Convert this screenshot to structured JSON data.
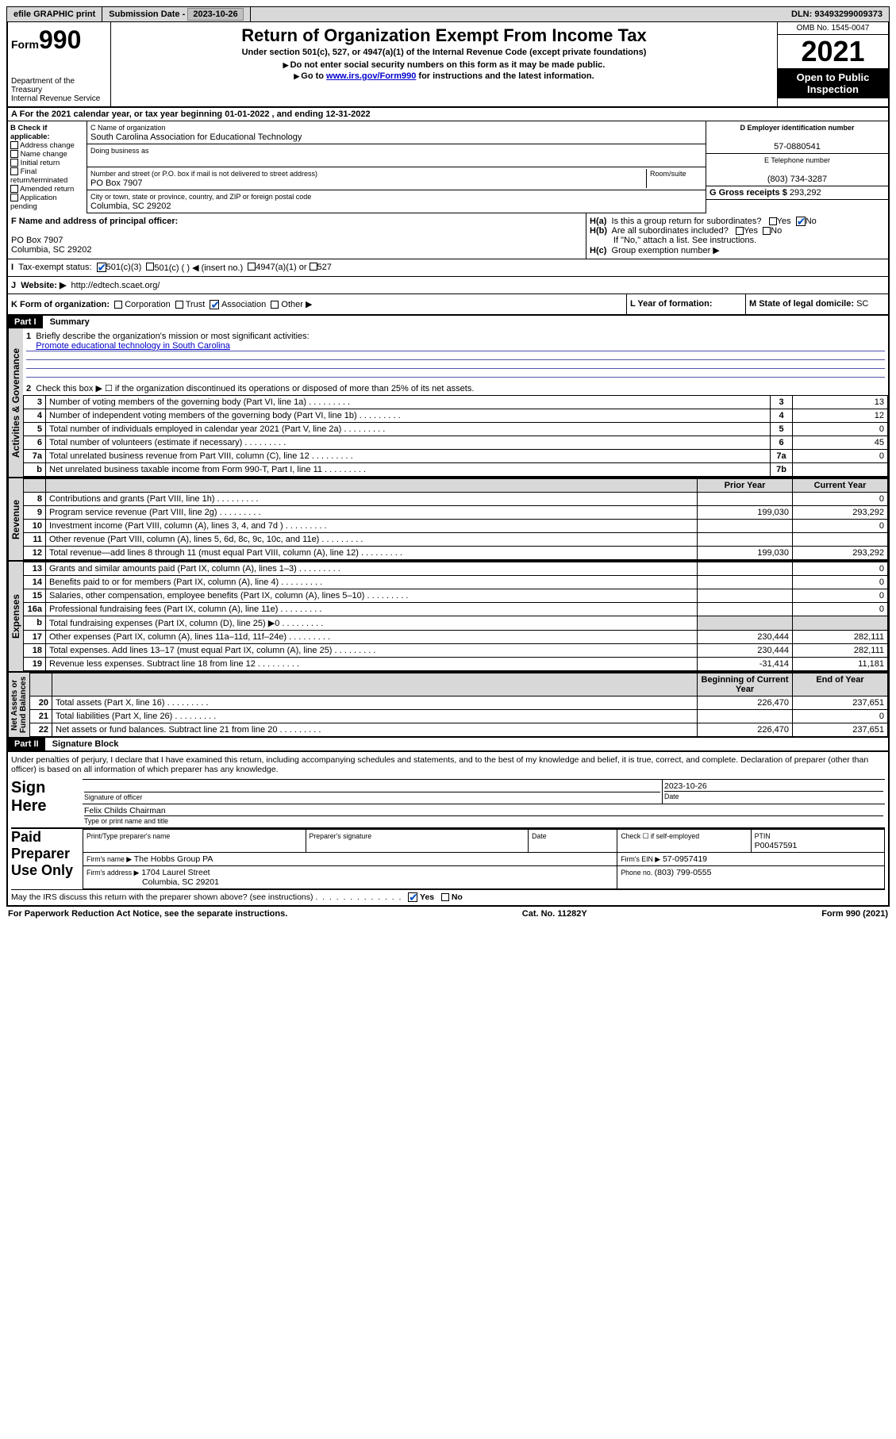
{
  "topbar": {
    "efile": "efile GRAPHIC print",
    "submission_label": "Submission Date - ",
    "submission_date": "2023-10-26",
    "dln_label": "DLN: ",
    "dln": "93493299009373"
  },
  "header": {
    "form_small": "Form",
    "form_big": "990",
    "dept1": "Department of the Treasury",
    "dept2": "Internal Revenue Service",
    "title": "Return of Organization Exempt From Income Tax",
    "subtitle": "Under section 501(c), 527, or 4947(a)(1) of the Internal Revenue Code (except private foundations)",
    "note1": "Do not enter social security numbers on this form as it may be made public.",
    "note2_pre": "Go to ",
    "note2_link": "www.irs.gov/Form990",
    "note2_post": " for instructions and the latest information.",
    "omb": "OMB No. 1545-0047",
    "year": "2021",
    "open_pub1": "Open to Public",
    "open_pub2": "Inspection"
  },
  "periodA": "For the 2021 calendar year, or tax year beginning 01-01-2022   , and ending 12-31-2022",
  "colB": {
    "title": "B Check if applicable:",
    "items": [
      "Address change",
      "Name change",
      "Initial return",
      "Final return/terminated",
      "Amended return",
      "Application pending"
    ]
  },
  "colC": {
    "name_label": "C Name of organization",
    "name": "South Carolina Association for Educational Technology",
    "dba": "Doing business as",
    "addr_label": "Number and street (or P.O. box if mail is not delivered to street address)",
    "room": "Room/suite",
    "addr": "PO Box 7907",
    "city_label": "City or town, state or province, country, and ZIP or foreign postal code",
    "city": "Columbia, SC  29202"
  },
  "colD": {
    "ein_label": "D Employer identification number",
    "ein": "57-0880541",
    "phone_label": "E Telephone number",
    "phone": "(803) 734-3287",
    "gross_label": "G Gross receipts $ ",
    "gross": "293,292"
  },
  "rowF": {
    "label": "F  Name and address of principal officer:",
    "addr1": "PO Box 7907",
    "addr2": "Columbia, SC  29202"
  },
  "rowH": {
    "a": "Is this a group return for subordinates?",
    "b": "Are all subordinates included?",
    "b_note": "If \"No,\" attach a list. See instructions.",
    "c": "Group exemption number ▶",
    "yes": "Yes",
    "no": "No"
  },
  "rowI": {
    "label": "Tax-exempt status:",
    "o501c3": "501(c)(3)",
    "o501c": "501(c) (  ) ◀ (insert no.)",
    "o4947": "4947(a)(1) or",
    "o527": "527"
  },
  "rowJ": {
    "label": "Website: ▶",
    "url": "http://edtech.scaet.org/"
  },
  "rowK": {
    "label": "K Form of organization:",
    "corp": "Corporation",
    "trust": "Trust",
    "assoc": "Association",
    "other": "Other ▶"
  },
  "rowL": {
    "label": "L Year of formation:"
  },
  "rowM": {
    "label": "M State of legal domicile: ",
    "val": "SC"
  },
  "part1": {
    "header": "Part I",
    "title": "Summary",
    "q1": "Briefly describe the organization's mission or most significant activities:",
    "mission": "Promote educational technology in South Carolina",
    "q2": "Check this box ▶ ☐  if the organization discontinued its operations or disposed of more than 25% of its net assets.",
    "rows_gov": [
      {
        "n": "3",
        "t": "Number of voting members of the governing body (Part VI, line 1a)",
        "box": "3",
        "v": "13"
      },
      {
        "n": "4",
        "t": "Number of independent voting members of the governing body (Part VI, line 1b)",
        "box": "4",
        "v": "12"
      },
      {
        "n": "5",
        "t": "Total number of individuals employed in calendar year 2021 (Part V, line 2a)",
        "box": "5",
        "v": "0"
      },
      {
        "n": "6",
        "t": "Total number of volunteers (estimate if necessary)",
        "box": "6",
        "v": "45"
      },
      {
        "n": "7a",
        "t": "Total unrelated business revenue from Part VIII, column (C), line 12",
        "box": "7a",
        "v": "0"
      },
      {
        "n": "b",
        "t": "Net unrelated business taxable income from Form 990-T, Part I, line 11",
        "box": "7b",
        "v": ""
      }
    ],
    "prior": "Prior Year",
    "current": "Current Year",
    "rows_rev": [
      {
        "n": "8",
        "t": "Contributions and grants (Part VIII, line 1h)",
        "p": "",
        "c": "0"
      },
      {
        "n": "9",
        "t": "Program service revenue (Part VIII, line 2g)",
        "p": "199,030",
        "c": "293,292"
      },
      {
        "n": "10",
        "t": "Investment income (Part VIII, column (A), lines 3, 4, and 7d )",
        "p": "",
        "c": "0"
      },
      {
        "n": "11",
        "t": "Other revenue (Part VIII, column (A), lines 5, 6d, 8c, 9c, 10c, and 11e)",
        "p": "",
        "c": ""
      },
      {
        "n": "12",
        "t": "Total revenue—add lines 8 through 11 (must equal Part VIII, column (A), line 12)",
        "p": "199,030",
        "c": "293,292"
      }
    ],
    "rows_exp": [
      {
        "n": "13",
        "t": "Grants and similar amounts paid (Part IX, column (A), lines 1–3)",
        "p": "",
        "c": "0"
      },
      {
        "n": "14",
        "t": "Benefits paid to or for members (Part IX, column (A), line 4)",
        "p": "",
        "c": "0"
      },
      {
        "n": "15",
        "t": "Salaries, other compensation, employee benefits (Part IX, column (A), lines 5–10)",
        "p": "",
        "c": "0"
      },
      {
        "n": "16a",
        "t": "Professional fundraising fees (Part IX, column (A), line 11e)",
        "p": "",
        "c": "0"
      },
      {
        "n": "b",
        "t": "Total fundraising expenses (Part IX, column (D), line 25) ▶0",
        "p": "shade",
        "c": "shade"
      },
      {
        "n": "17",
        "t": "Other expenses (Part IX, column (A), lines 11a–11d, 11f–24e)",
        "p": "230,444",
        "c": "282,111"
      },
      {
        "n": "18",
        "t": "Total expenses. Add lines 13–17 (must equal Part IX, column (A), line 25)",
        "p": "230,444",
        "c": "282,111"
      },
      {
        "n": "19",
        "t": "Revenue less expenses. Subtract line 18 from line 12",
        "p": "-31,414",
        "c": "11,181"
      }
    ],
    "begin": "Beginning of Current Year",
    "end": "End of Year",
    "rows_net": [
      {
        "n": "20",
        "t": "Total assets (Part X, line 16)",
        "p": "226,470",
        "c": "237,651"
      },
      {
        "n": "21",
        "t": "Total liabilities (Part X, line 26)",
        "p": "",
        "c": "0"
      },
      {
        "n": "22",
        "t": "Net assets or fund balances. Subtract line 21 from line 20",
        "p": "226,470",
        "c": "237,651"
      }
    ]
  },
  "part2": {
    "header": "Part II",
    "title": "Signature Block",
    "decl": "Under penalties of perjury, I declare that I have examined this return, including accompanying schedules and statements, and to the best of my knowledge and belief, it is true, correct, and complete. Declaration of preparer (other than officer) is based on all information of which preparer has any knowledge.",
    "sign_here": "Sign Here",
    "sig_officer": "Signature of officer",
    "sig_date": "Date",
    "sig_date_val": "2023-10-26",
    "sig_name": "Felix Childs  Chairman",
    "sig_name_label": "Type or print name and title",
    "paid": "Paid Preparer Use Only",
    "prep_name": "Print/Type preparer's name",
    "prep_sig": "Preparer's signature",
    "prep_date": "Date",
    "prep_check": "Check ☐ if self-employed",
    "ptin_label": "PTIN",
    "ptin": "P00457591",
    "firm_name_l": "Firm's name    ▶",
    "firm_name": "The Hobbs Group PA",
    "firm_ein_l": "Firm's EIN ▶",
    "firm_ein": "57-0957419",
    "firm_addr_l": "Firm's address ▶",
    "firm_addr1": "1704 Laurel Street",
    "firm_addr2": "Columbia, SC  29201",
    "firm_phone_l": "Phone no. ",
    "firm_phone": "(803) 799-0555",
    "irs_q": "May the IRS discuss this return with the preparer shown above? (see instructions)"
  },
  "footer": {
    "left": "For Paperwork Reduction Act Notice, see the separate instructions.",
    "mid": "Cat. No. 11282Y",
    "right": "Form 990 (2021)"
  },
  "colors": {
    "shade": "#d8d8d8",
    "link": "#0000cc",
    "check": "#0050c0"
  }
}
